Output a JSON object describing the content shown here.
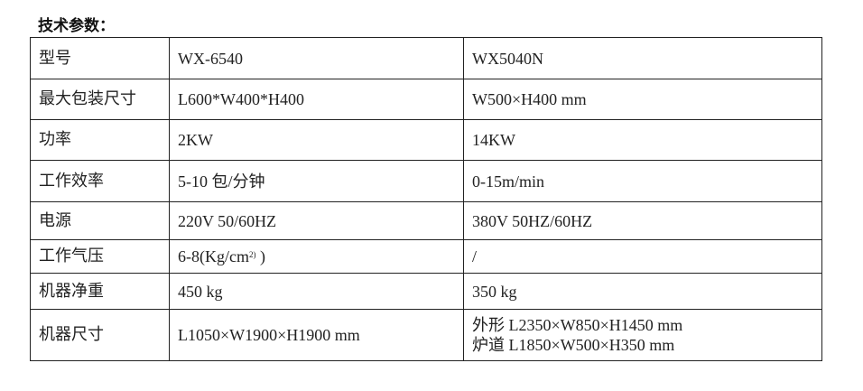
{
  "title": "技术参数：",
  "rows": [
    {
      "label": "型号",
      "a": "WX-6540",
      "b": "WX5040N"
    },
    {
      "label": "最大包装尺寸",
      "a": "L600*W400*H400",
      "b": "W500×H400 mm"
    },
    {
      "label": "功率",
      "a": "2KW",
      "b": "14KW"
    },
    {
      "label": "工作效率",
      "a": "5-10 包/分钟",
      "b": "0-15m/min"
    },
    {
      "label": "电源",
      "a": "220V 50/60HZ",
      "b": "380V 50HZ/60HZ"
    },
    {
      "label": "工作气压",
      "a": "6-8(Kg/cm",
      "a_sup": "2)",
      "a_tail": " )",
      "b": "/"
    },
    {
      "label": "机器净重",
      "a": "450 kg",
      "b": "350 kg"
    },
    {
      "label": "机器尺寸",
      "a": "L1050×W1900×H1900 mm",
      "b": "外形 L2350×W850×H1450 mm",
      "b2": "炉道 L1850×W500×H350 mm"
    }
  ]
}
